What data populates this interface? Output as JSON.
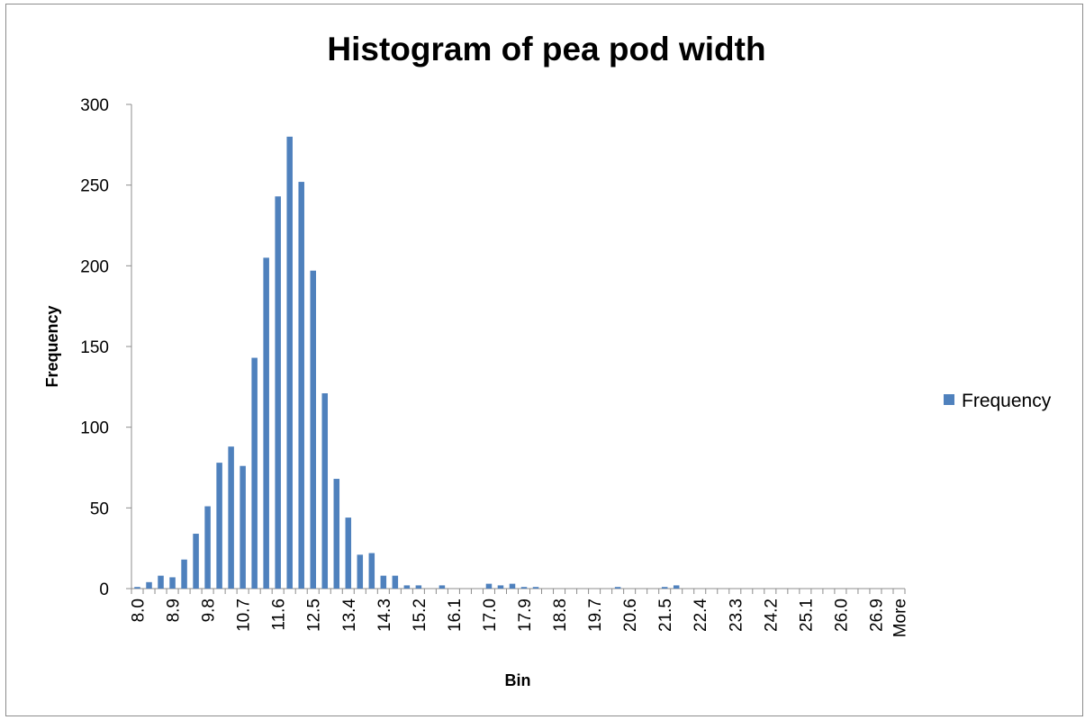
{
  "chart_data": {
    "type": "bar",
    "title": "Histogram of pea pod width",
    "xlabel": "Bin",
    "ylabel": "Frequency",
    "ylim": [
      0,
      300
    ],
    "yticks": [
      "0",
      "50",
      "100",
      "150",
      "200",
      "250",
      "300"
    ],
    "grid": false,
    "legend_position": "right",
    "bar_color": "#4f81bd",
    "categories": [
      "8.0",
      "8.3",
      "8.6",
      "8.9",
      "9.2",
      "9.5",
      "9.8",
      "10.1",
      "10.4",
      "10.7",
      "11.0",
      "11.3",
      "11.6",
      "11.9",
      "12.2",
      "12.5",
      "12.8",
      "13.1",
      "13.4",
      "13.7",
      "14.0",
      "14.3",
      "14.6",
      "14.9",
      "15.2",
      "15.5",
      "15.8",
      "16.1",
      "16.4",
      "16.7",
      "17.0",
      "17.3",
      "17.6",
      "17.9",
      "18.2",
      "18.5",
      "18.8",
      "19.1",
      "19.4",
      "19.7",
      "20.0",
      "20.3",
      "20.6",
      "20.9",
      "21.2",
      "21.5",
      "21.8",
      "22.1",
      "22.4",
      "22.7",
      "23.0",
      "23.3",
      "23.6",
      "23.9",
      "24.2",
      "24.5",
      "24.8",
      "25.1",
      "25.4",
      "25.7",
      "26.0",
      "26.3",
      "26.6",
      "26.9",
      "27.2",
      "More"
    ],
    "visible_tick_labels": [
      "8.0",
      "8.9",
      "9.8",
      "10.7",
      "11.6",
      "12.5",
      "13.4",
      "14.3",
      "15.2",
      "16.1",
      "17.0",
      "17.9",
      "18.8",
      "19.7",
      "20.6",
      "21.5",
      "22.4",
      "23.3",
      "24.2",
      "25.1",
      "26.0",
      "26.9",
      "More"
    ],
    "series": [
      {
        "name": "Frequency",
        "values": [
          1,
          4,
          8,
          7,
          18,
          34,
          51,
          78,
          88,
          76,
          143,
          205,
          243,
          280,
          252,
          197,
          121,
          68,
          44,
          21,
          22,
          8,
          8,
          2,
          2,
          0,
          2,
          0,
          0,
          0,
          3,
          2,
          3,
          1,
          1,
          0,
          0,
          0,
          0,
          0,
          0,
          1,
          0,
          0,
          0,
          1,
          2,
          0,
          0,
          0,
          0,
          0,
          0,
          0,
          0,
          0,
          0,
          0,
          0,
          0,
          0,
          0,
          0,
          0,
          0,
          0
        ]
      }
    ]
  }
}
